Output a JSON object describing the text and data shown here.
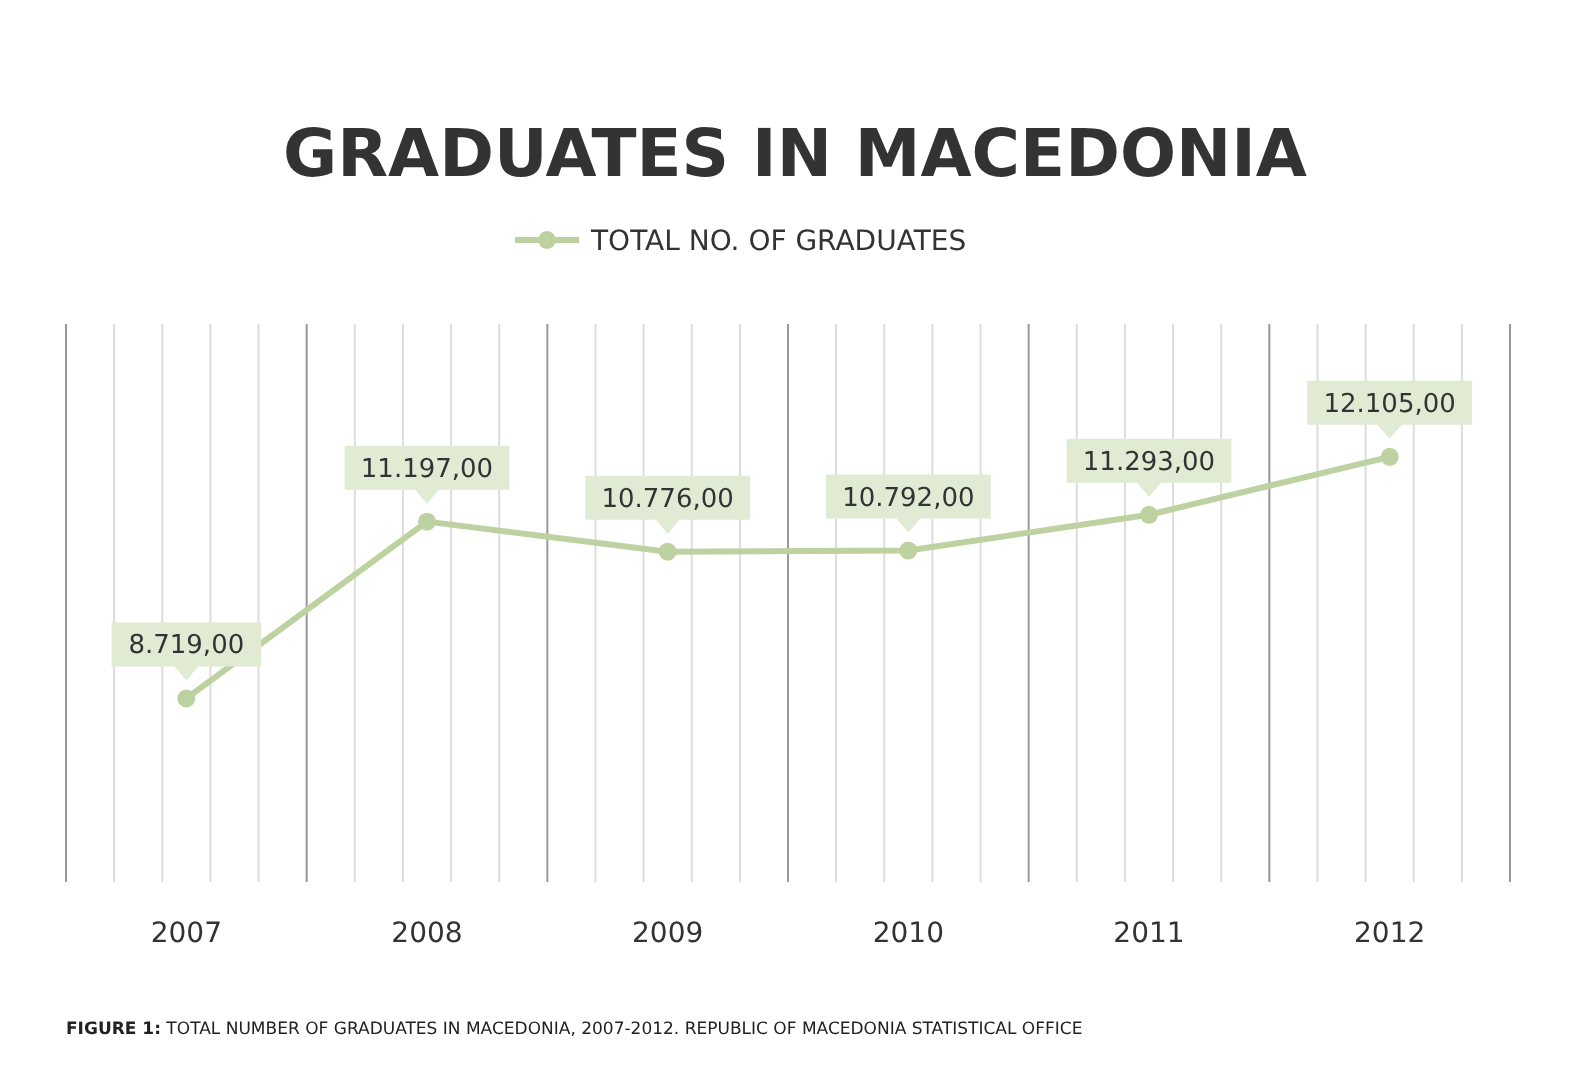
{
  "chart_data": {
    "type": "line",
    "title": "GRADUATES IN MACEDONIA",
    "categories": [
      "2007",
      "2008",
      "2009",
      "2010",
      "2011",
      "2012"
    ],
    "series": [
      {
        "name": "TOTAL NO. OF GRADUATES",
        "color": "#bdd2a0",
        "values": [
          8719,
          11197,
          10776,
          10792,
          11293,
          12105
        ],
        "value_labels": [
          "8.719,00",
          "11.197,00",
          "10.776,00",
          "10.792,00",
          "11.293,00",
          "12.105,00"
        ]
      }
    ],
    "marker": "circle",
    "line_style": "solid",
    "grid": "x",
    "legend": "top",
    "tick_labels": "x",
    "annotations": [
      "FIGURE 1: TOTAL NUMBER OF GRADUATES IN MACEDONIA, 2007-2012. REPUBLIC OF MACEDONIA STATISTICAL OFFICE"
    ]
  }
}
